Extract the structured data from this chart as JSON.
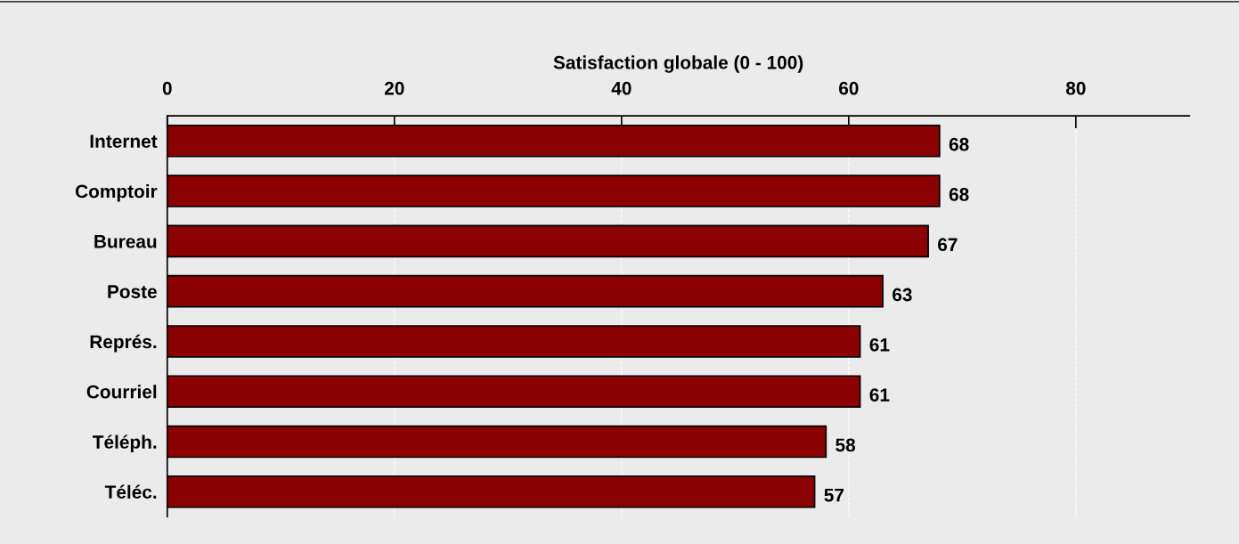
{
  "chart_data": {
    "type": "bar",
    "orientation": "horizontal",
    "xlabel": "Satisfaction globale (0 - 100)",
    "categories": [
      "Internet",
      "Comptoir",
      "Bureau",
      "Poste",
      "Représ.",
      "Courriel",
      "Téléph.",
      "Téléc."
    ],
    "values": [
      68,
      68,
      67,
      63,
      61,
      61,
      58,
      57
    ],
    "color": "#8b0000",
    "xlim": [
      0,
      90
    ],
    "xticks": [
      0,
      20,
      40,
      60,
      80
    ],
    "grid": "x",
    "data_labels": true
  }
}
